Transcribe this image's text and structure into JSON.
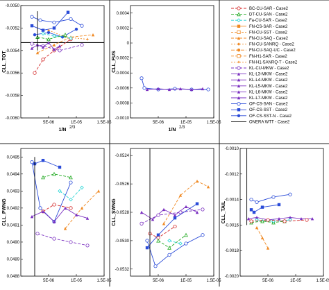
{
  "figure": {
    "panels": [
      {
        "id": "tot",
        "ylabel": "CLL_TOT",
        "xlabel": "1/N²ᐟ³"
      },
      {
        "id": "fus",
        "ylabel": "CLL_FUS",
        "xlabel": "1/N²ᐟ³"
      },
      {
        "id": "pwng",
        "ylabel": "CLL_PWNG",
        "xlabel": ""
      },
      {
        "id": "swng",
        "ylabel": "CLL_SWNG",
        "xlabel": ""
      },
      {
        "id": "tail",
        "ylabel": "CLL_TAIL",
        "xlabel": ""
      }
    ],
    "xlabel_tot_fus": "1/N",
    "xlabel_sup": "2/3"
  },
  "legend": {
    "entries": [
      {
        "label": "BC-CU-SAR - Case2",
        "color": "#d42a2a",
        "dash": "4,2",
        "marker": "circle-open"
      },
      {
        "label": "DT-CU-SAN - Case2",
        "color": "#22aa22",
        "dash": "4,2",
        "marker": "triangle-open"
      },
      {
        "label": "Fa-CU-SAR - Case2",
        "color": "#22d4d4",
        "dash": "4,2",
        "marker": "diamond-open"
      },
      {
        "label": "FN-CS-SAR - Case2",
        "color": "#f08a24",
        "dash": "",
        "marker": "square-fill"
      },
      {
        "label": "FN-CU-SST - Case2",
        "color": "#f08a24",
        "dash": "3,2",
        "marker": "square-open"
      },
      {
        "label": "FN-CU-SAQ - Case2",
        "color": "#f08a24",
        "dash": "4,2",
        "marker": "triangle-fill"
      },
      {
        "label": "FN-CU-SANRQ - Case2",
        "color": "#f08a24",
        "dash": "2,2",
        "marker": "diamond-fill"
      },
      {
        "label": "FN-CU-SAQ-UC - Case2",
        "color": "#f08a24",
        "dash": "5,2",
        "marker": "circle-fill"
      },
      {
        "label": "FN-H1-SAR - Case2",
        "color": "#f08a24",
        "dash": "4,2",
        "marker": "square-open"
      },
      {
        "label": "FN-H1-SANRQ-T - Case2",
        "color": "#f08a24",
        "dash": "2,2",
        "marker": "star"
      },
      {
        "label": "KL-CU-MKW - Case2",
        "color": "#7a2fc0",
        "dash": "4,2",
        "marker": "circle-open"
      },
      {
        "label": "KL-L3-MKW - Case2",
        "color": "#7a2fc0",
        "dash": "",
        "marker": "triangle-fill"
      },
      {
        "label": "KL-L4-MKW - Case2",
        "color": "#7a2fc0",
        "dash": "",
        "marker": "triangle-fill"
      },
      {
        "label": "KL-L5-MKW - Case2",
        "color": "#7a2fc0",
        "dash": "",
        "marker": "triangle-fill"
      },
      {
        "label": "KL-L6-MKW - Case2",
        "color": "#7a2fc0",
        "dash": "",
        "marker": "triangle-fill"
      },
      {
        "label": "KL-L7-MKW - Case2",
        "color": "#7a2fc0",
        "dash": "",
        "marker": "triangle-fill"
      },
      {
        "label": "OF-CS-SAN - Case2",
        "color": "#2a4bd8",
        "dash": "",
        "marker": "circle-open"
      },
      {
        "label": "OF-CS-SST - Case2",
        "color": "#2a4bd8",
        "dash": "",
        "marker": "square-fill"
      },
      {
        "label": "OF-CS-SST-N - Case2",
        "color": "#2a4bd8",
        "dash": "",
        "marker": "circle-fill"
      },
      {
        "label": "ONERA WTT - Case2",
        "color": "#000000",
        "dash": "",
        "marker": "none"
      }
    ]
  },
  "chart_data": [
    {
      "type": "line",
      "ylabel": "CLL_TOT",
      "xlabel": "1/N^2/3",
      "xlim": [
        0,
        1.5e-05
      ],
      "ylim": [
        -0.006,
        -0.005
      ],
      "xticks": [
        "5E-06",
        "1E-05",
        "1.5E-05"
      ],
      "yticks": [
        "-0.0050",
        "-0.0052",
        "-0.0054",
        "-0.0056",
        "-0.0058",
        "-0.0060"
      ],
      "reference": {
        "name": "ONERA WTT - Case2",
        "value": -0.00533
      },
      "series": [
        {
          "name": "OF-CS-SAN - Case2",
          "x": [
            2e-06,
            3.5e-06,
            6e-06,
            9e-06,
            1.1e-05
          ],
          "y": [
            -0.0051,
            -0.00513,
            -0.00515,
            -0.00512,
            -0.00518
          ]
        },
        {
          "name": "OF-CS-SST - Case2",
          "x": [
            2e-06,
            4e-06,
            6e-06,
            8.5e-06
          ],
          "y": [
            -0.00518,
            -0.00522,
            -0.0052,
            -0.00506
          ]
        },
        {
          "name": "OF-CS-SST-N - Case2",
          "x": [
            2.5e-06,
            5e-06,
            7.5e-06,
            1e-05
          ],
          "y": [
            -0.00526,
            -0.00524,
            -0.00528,
            -0.00521
          ]
        },
        {
          "name": "BC-CU-SAR - Case2",
          "x": [
            2.5e-06,
            4e-06,
            6e-06,
            9e-06
          ],
          "y": [
            -0.0056,
            -0.00548,
            -0.0054,
            -0.0053
          ]
        },
        {
          "name": "FN-CU-SAQ - Case2",
          "x": [
            3e-06,
            6e-06,
            9e-06,
            1.3e-05
          ],
          "y": [
            -0.00542,
            -0.00535,
            -0.00528,
            -0.00526
          ]
        },
        {
          "name": "FN-H1-SANRQ-T - Case2",
          "x": [
            5e-06,
            8e-06,
            1.2e-05
          ],
          "y": [
            -0.00522,
            -0.00528,
            -0.0053
          ]
        },
        {
          "name": "KL-CU-MKW - Case2",
          "x": [
            2e-06,
            4e-06,
            7e-06,
            1.1e-05
          ],
          "y": [
            -0.00534,
            -0.00536,
            -0.0054,
            -0.00535
          ]
        },
        {
          "name": "KL-L5-MKW - Case2",
          "x": [
            2e-06,
            3e-06,
            4e-06,
            5e-06,
            6e-06,
            7e-06
          ],
          "y": [
            -0.00538,
            -0.00535,
            -0.00537,
            -0.00533,
            -0.00539,
            -0.00536
          ]
        },
        {
          "name": "DT-CU-SAN - Case2",
          "x": [
            3e-06,
            5e-06,
            8e-06
          ],
          "y": [
            -0.00528,
            -0.0053,
            -0.00526
          ]
        },
        {
          "name": "Fa-CU-SAR - Case2",
          "x": [
            4e-06,
            6e-06,
            9e-06
          ],
          "y": [
            -0.00525,
            -0.00527,
            -0.00529
          ]
        },
        {
          "name": "ONERA WTT - Case2",
          "x": [
            3e-06,
            3e-06
          ],
          "y": [
            -0.00505,
            -0.0054
          ]
        }
      ]
    },
    {
      "type": "line",
      "ylabel": "CLL_FUS",
      "xlabel": "1/N^2/3",
      "xlim": [
        0,
        1.5e-05
      ],
      "ylim": [
        -0.001,
        0.0005
      ],
      "xticks": [
        "5E-06",
        "1E-05",
        "1.5E-05"
      ],
      "yticks": [
        "0.0004",
        "0.0002",
        "0",
        "-0.0002",
        "-0.0004",
        "-0.0006",
        "-0.0008",
        "-0.0010"
      ],
      "series": [
        {
          "name": "OF-CS-SAN - Case2",
          "x": [
            2e-06,
            2.5e-06,
            5e-06,
            8e-06,
            1.1e-05,
            1.4e-05
          ],
          "y": [
            -0.00047,
            -0.0006,
            -0.00062,
            -0.00061,
            -0.00062,
            -0.00062
          ]
        },
        {
          "name": "KL-L5-MKW - Case2",
          "x": [
            3e-06,
            5e-06,
            7e-06,
            9e-06,
            1.1e-05,
            1.3e-05
          ],
          "y": [
            -0.00062,
            -0.00061,
            -0.00062,
            -0.00061,
            -0.00062,
            -0.00061
          ]
        }
      ]
    },
    {
      "type": "line",
      "ylabel": "CLL_PWNG",
      "xlabel": "",
      "xlim": [
        0,
        1.5e-05
      ],
      "ylim": [
        0.0488,
        0.04955
      ],
      "xticks": [
        "5E-06",
        "1E-05",
        "1.5E-05"
      ],
      "yticks": [
        "0.0495",
        "0.0494",
        "0.0493",
        "0.0492",
        "0.0491",
        "0.0490",
        "0.0489",
        "0.0488"
      ],
      "series": [
        {
          "name": "OF-CS-SAN - Case2",
          "x": [
            2e-06,
            3.5e-06,
            6e-06,
            9e-06
          ],
          "y": [
            0.04947,
            0.0492,
            0.04912,
            0.04935
          ]
        },
        {
          "name": "OF-CS-SST - Case2",
          "x": [
            2.5e-06,
            4e-06,
            7e-06
          ],
          "y": [
            0.04946,
            0.04948,
            0.04944
          ]
        },
        {
          "name": "DT-CU-SAN - Case2",
          "x": [
            4e-06,
            6e-06,
            9e-06
          ],
          "y": [
            0.04938,
            0.0494,
            0.04938
          ]
        },
        {
          "name": "Fa-CU-SAR - Case2",
          "x": [
            7e-06,
            9e-06,
            1.1e-05
          ],
          "y": [
            0.0493,
            0.04925,
            0.04932
          ]
        },
        {
          "name": "FN-CU-SAQ - Case2",
          "x": [
            8e-06,
            1.1e-05,
            1.4e-05
          ],
          "y": [
            0.04908,
            0.0492,
            0.0493
          ]
        },
        {
          "name": "BC-CU-SAR - Case2",
          "x": [
            4e-06,
            6e-06,
            9e-06
          ],
          "y": [
            0.04918,
            0.04922,
            0.0492
          ]
        },
        {
          "name": "KL-L5-MKW - Case2",
          "x": [
            2e-06,
            4e-06,
            6e-06,
            8e-06,
            1e-05,
            1.2e-05
          ],
          "y": [
            0.04915,
            0.04918,
            0.04912,
            0.0492,
            0.04916,
            0.04914
          ]
        },
        {
          "name": "KL-CU-MKW - Case2",
          "x": [
            3e-06,
            6e-06,
            9e-06,
            1.2e-05
          ],
          "y": [
            0.04905,
            0.04902,
            0.049,
            0.04898
          ]
        },
        {
          "name": "ONERA WTT - Case2",
          "x": [
            2.5e-06,
            2.5e-06
          ],
          "y": [
            0.0488,
            0.0495
          ]
        }
      ]
    },
    {
      "type": "line",
      "ylabel": "CLL_SWNG",
      "xlabel": "",
      "xlim": [
        0,
        1.5e-05
      ],
      "ylim": [
        -0.05325,
        -0.05235
      ],
      "xticks": [
        "5E-06",
        "1E-05",
        "1.5E-05"
      ],
      "yticks": [
        "-0.0524",
        "-0.0526",
        "-0.0528",
        "-0.0530",
        "-0.0532"
      ],
      "series": [
        {
          "name": "OF-CS-SAN - Case2",
          "x": [
            3e-06,
            4.5e-06,
            7e-06,
            1e-05,
            1.3e-05
          ],
          "y": [
            -0.053,
            -0.05318,
            -0.0531,
            -0.05302,
            -0.05296
          ]
        },
        {
          "name": "OF-CS-SST - Case2",
          "x": [
            3e-06,
            5e-06,
            8e-06,
            1.2e-05
          ],
          "y": [
            -0.05305,
            -0.05296,
            -0.05284,
            -0.05274
          ]
        },
        {
          "name": "FN-CU-SAQ - Case2",
          "x": [
            6e-06,
            9e-06,
            1.2e-05,
            1.4e-05
          ],
          "y": [
            -0.05288,
            -0.05268,
            -0.05258,
            -0.05262
          ]
        },
        {
          "name": "BC-CU-SAR - Case2",
          "x": [
            3.5e-06,
            5e-06,
            8e-06
          ],
          "y": [
            -0.05295,
            -0.05298,
            -0.0529
          ]
        },
        {
          "name": "KL-L5-MKW - Case2",
          "x": [
            2e-06,
            4e-06,
            6e-06,
            8e-06,
            1e-05,
            1.2e-05
          ],
          "y": [
            -0.0528,
            -0.05285,
            -0.05278,
            -0.05282,
            -0.05276,
            -0.0528
          ]
        },
        {
          "name": "KL-CU-MKW - Case2",
          "x": [
            2e-06,
            5e-06,
            9e-06,
            1.3e-05
          ],
          "y": [
            -0.05288,
            -0.05282,
            -0.0528,
            -0.05278
          ]
        },
        {
          "name": "DT-CU-SAN - Case2",
          "x": [
            5e-06,
            7e-06,
            1e-05
          ],
          "y": [
            -0.053,
            -0.05305,
            -0.05296
          ]
        },
        {
          "name": "Fa-CU-SAR - Case2",
          "x": [
            7e-06,
            9e-06
          ],
          "y": [
            -0.053,
            -0.05302
          ]
        },
        {
          "name": "ONERA WTT - Case2",
          "x": [
            3.5e-06,
            3.5e-06
          ],
          "y": [
            -0.05235,
            -0.05325
          ]
        }
      ]
    },
    {
      "type": "line",
      "ylabel": "CLL_TAIL",
      "xlabel": "",
      "xlim": [
        0,
        1.5e-05
      ],
      "ylim": [
        -0.002,
        -0.001
      ],
      "xticks": [
        "5E-06",
        "1E-05",
        "1.5E-05"
      ],
      "yticks": [
        "-0.0010",
        "-0.0012",
        "-0.0014",
        "-0.0016",
        "-0.0018",
        "-0.0020"
      ],
      "series": [
        {
          "name": "OF-CS-SAN - Case2",
          "x": [
            2e-06,
            3e-06,
            6e-06,
            9e-06
          ],
          "y": [
            -0.0014,
            -0.00142,
            -0.00138,
            -0.00136
          ]
        },
        {
          "name": "OF-CS-SST - Case2",
          "x": [
            2e-06,
            2.5e-06,
            4e-06,
            7e-06
          ],
          "y": [
            -0.00148,
            -0.0015,
            -0.00146,
            -0.00144
          ]
        },
        {
          "name": "FN-CU-SAQ - Case2",
          "x": [
            3e-06,
            4e-06,
            5e-06
          ],
          "y": [
            -0.00162,
            -0.0017,
            -0.00178
          ]
        },
        {
          "name": "KL-L5-MKW - Case2",
          "x": [
            1.5e-06,
            3e-06,
            5e-06,
            7e-06,
            9e-06,
            1.1e-05,
            1.3e-05
          ],
          "y": [
            -0.00155,
            -0.00154,
            -0.00156,
            -0.00155,
            -0.00154,
            -0.00155,
            -0.00155
          ]
        },
        {
          "name": "DT-CU-SAN - Case2",
          "x": [
            2e-06,
            4e-06,
            6e-06,
            8e-06
          ],
          "y": [
            -0.00158,
            -0.00157,
            -0.00158,
            -0.00157
          ]
        },
        {
          "name": "Fa-CU-SAR - Case2",
          "x": [
            3e-06,
            6e-06,
            9e-06
          ],
          "y": [
            -0.00156,
            -0.00157,
            -0.00156
          ]
        },
        {
          "name": "BC-CU-SAR - Case2",
          "x": [
            2e-06,
            5e-06,
            8e-06,
            1.2e-05
          ],
          "y": [
            -0.00157,
            -0.00156,
            -0.00157,
            -0.00156
          ]
        },
        {
          "name": "ONERA WTT - Case2",
          "x": [
            1.2e-06,
            1.2e-06
          ],
          "y": [
            -0.001,
            -0.0016
          ]
        }
      ]
    }
  ]
}
